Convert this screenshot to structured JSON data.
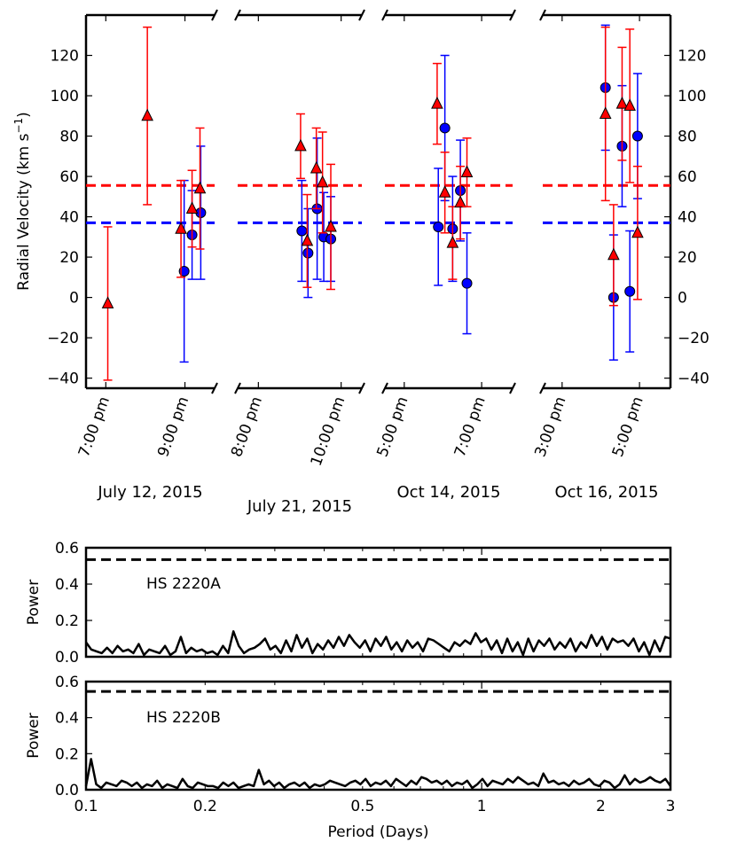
{
  "chart_data": [
    {
      "type": "scatter",
      "ylabel": "Radial Velocity (km s$^{-1}$)",
      "ylabel_main": "Radial Velocity (km s",
      "ylabel_sup": "−1",
      "ylabel_end": ")",
      "ylim": [
        -45,
        140
      ],
      "yticks": [
        -40,
        -20,
        0,
        20,
        40,
        60,
        80,
        100,
        120
      ],
      "hlines": [
        {
          "name": "red-mean",
          "value": 55.5,
          "color": "#ff0000",
          "style": "dashed"
        },
        {
          "name": "blue-mean",
          "value": 37,
          "color": "#0000ff",
          "style": "dashed"
        }
      ],
      "panels": [
        {
          "date_label": "July 12, 2015",
          "xlim": [
            18.5,
            21.75
          ],
          "ticks": [
            {
              "value": 19,
              "label": "7:00 pm"
            },
            {
              "value": 21,
              "label": "9:00 pm"
            }
          ],
          "red": [
            [
              19.05,
              -3,
              38
            ],
            [
              20.05,
              90,
              44
            ],
            [
              20.9,
              34,
              24
            ],
            [
              21.18,
              44,
              19
            ],
            [
              21.38,
              54,
              30
            ]
          ],
          "blue": [
            [
              20.98,
              13,
              45
            ],
            [
              21.18,
              31,
              22
            ],
            [
              21.4,
              42,
              33
            ]
          ]
        },
        {
          "date_label": "July 21, 2015",
          "xlim": [
            7.5,
            10.5
          ],
          "ticks": [
            {
              "value": 8,
              "label": "8:00 pm"
            },
            {
              "value": 10,
              "label": "10:00 pm"
            }
          ],
          "red": [
            [
              9.02,
              75,
              16
            ],
            [
              9.18,
              28,
              23
            ],
            [
              9.4,
              64,
              20
            ],
            [
              9.55,
              57,
              25
            ],
            [
              9.75,
              35,
              31
            ]
          ],
          "blue": [
            [
              9.05,
              33,
              25
            ],
            [
              9.2,
              22,
              22
            ],
            [
              9.42,
              44,
              35
            ],
            [
              9.58,
              30,
              22
            ],
            [
              9.75,
              29,
              21
            ]
          ]
        },
        {
          "date_label": "Oct 14, 2015",
          "xlim": [
            4.5,
            7.8
          ],
          "ticks": [
            {
              "value": 5,
              "label": "5:00 pm"
            },
            {
              "value": 7,
              "label": "7:00 pm"
            }
          ],
          "red": [
            [
              5.85,
              96,
              20
            ],
            [
              6.05,
              52,
              20
            ],
            [
              6.25,
              27,
              18
            ],
            [
              6.45,
              47,
              18
            ],
            [
              6.62,
              62,
              17
            ]
          ],
          "blue": [
            [
              5.88,
              35,
              29
            ],
            [
              6.05,
              84,
              36
            ],
            [
              6.25,
              34,
              26
            ],
            [
              6.45,
              53,
              25
            ],
            [
              6.62,
              7,
              25
            ]
          ]
        },
        {
          "date_label": "Oct 16, 2015",
          "xlim": [
            2.5,
            5.8
          ],
          "ticks": [
            {
              "value": 3,
              "label": "3:00 pm"
            },
            {
              "value": 5,
              "label": "5:00 pm"
            }
          ],
          "red": [
            [
              4.12,
              91,
              43
            ],
            [
              4.33,
              21,
              25
            ],
            [
              4.55,
              96,
              28
            ],
            [
              4.75,
              95,
              38
            ],
            [
              4.95,
              32,
              33
            ]
          ],
          "blue": [
            [
              4.12,
              104,
              31
            ],
            [
              4.33,
              0,
              31
            ],
            [
              4.55,
              75,
              30
            ],
            [
              4.75,
              3,
              30
            ],
            [
              4.95,
              80,
              31
            ]
          ]
        }
      ]
    },
    {
      "type": "line",
      "xscale": "log",
      "xlim": [
        0.1,
        3
      ],
      "ylim": [
        0,
        0.6
      ],
      "yticks": [
        0.0,
        0.2,
        0.4,
        0.6
      ],
      "ylabel": "Power",
      "annotation": "HS 2220A",
      "threshold": 0.535,
      "series": [
        {
          "name": "HS 2220A",
          "period_range": [
            0.1,
            3
          ],
          "values": [
            0.08,
            0.04,
            0.03,
            0.02,
            0.05,
            0.02,
            0.06,
            0.03,
            0.04,
            0.02,
            0.07,
            0.01,
            0.04,
            0.03,
            0.02,
            0.06,
            0.01,
            0.03,
            0.11,
            0.02,
            0.05,
            0.03,
            0.04,
            0.02,
            0.03,
            0.01,
            0.06,
            0.02,
            0.14,
            0.06,
            0.02,
            0.04,
            0.05,
            0.07,
            0.1,
            0.04,
            0.06,
            0.02,
            0.09,
            0.03,
            0.12,
            0.05,
            0.1,
            0.02,
            0.07,
            0.04,
            0.09,
            0.05,
            0.11,
            0.06,
            0.12,
            0.08,
            0.05,
            0.09,
            0.03,
            0.1,
            0.06,
            0.11,
            0.04,
            0.08,
            0.03,
            0.09,
            0.05,
            0.08,
            0.03,
            0.1,
            0.09,
            0.07,
            0.05,
            0.03,
            0.08,
            0.06,
            0.09,
            0.07,
            0.13,
            0.08,
            0.1,
            0.04,
            0.09,
            0.02,
            0.1,
            0.03,
            0.08,
            0.01,
            0.1,
            0.03,
            0.09,
            0.06,
            0.1,
            0.04,
            0.08,
            0.05,
            0.1,
            0.03,
            0.08,
            0.05,
            0.12,
            0.06,
            0.11,
            0.04,
            0.1,
            0.08,
            0.09,
            0.06,
            0.1,
            0.03,
            0.08,
            0.01,
            0.09,
            0.03,
            0.11,
            0.1
          ]
        }
      ],
      "show_xticklabels": false
    },
    {
      "type": "line",
      "xscale": "log",
      "xlim": [
        0.1,
        3
      ],
      "ylim": [
        0,
        0.6
      ],
      "yticks": [
        0.0,
        0.2,
        0.4,
        0.6
      ],
      "ylabel": "Power",
      "annotation": "HS 2220B",
      "threshold": 0.545,
      "xlabel": "Period (Days)",
      "xticks": [
        {
          "value": 0.1,
          "label": "0.1"
        },
        {
          "value": 0.2,
          "label": "0.2"
        },
        {
          "value": 0.5,
          "label": "0.5"
        },
        {
          "value": 1,
          "label": "1"
        },
        {
          "value": 2,
          "label": "2"
        },
        {
          "value": 3,
          "label": "3"
        }
      ],
      "series": [
        {
          "name": "HS 2220B",
          "period_range": [
            0.1,
            3
          ],
          "values": [
            0.02,
            0.17,
            0.03,
            0.01,
            0.04,
            0.03,
            0.02,
            0.05,
            0.04,
            0.02,
            0.04,
            0.01,
            0.03,
            0.02,
            0.05,
            0.01,
            0.03,
            0.02,
            0.01,
            0.06,
            0.02,
            0.01,
            0.04,
            0.03,
            0.02,
            0.02,
            0.01,
            0.04,
            0.02,
            0.04,
            0.01,
            0.02,
            0.03,
            0.02,
            0.11,
            0.03,
            0.05,
            0.02,
            0.04,
            0.01,
            0.03,
            0.04,
            0.02,
            0.04,
            0.01,
            0.03,
            0.02,
            0.03,
            0.05,
            0.04,
            0.03,
            0.02,
            0.04,
            0.05,
            0.03,
            0.06,
            0.02,
            0.04,
            0.03,
            0.05,
            0.02,
            0.06,
            0.04,
            0.02,
            0.05,
            0.03,
            0.07,
            0.06,
            0.04,
            0.05,
            0.03,
            0.05,
            0.02,
            0.04,
            0.03,
            0.05,
            0.01,
            0.03,
            0.06,
            0.02,
            0.05,
            0.04,
            0.03,
            0.06,
            0.04,
            0.07,
            0.05,
            0.03,
            0.04,
            0.02,
            0.09,
            0.04,
            0.05,
            0.03,
            0.04,
            0.02,
            0.05,
            0.03,
            0.04,
            0.06,
            0.03,
            0.02,
            0.05,
            0.04,
            0.01,
            0.03,
            0.08,
            0.03,
            0.06,
            0.04,
            0.05,
            0.07,
            0.05,
            0.04,
            0.06,
            0.02
          ]
        }
      ]
    }
  ]
}
